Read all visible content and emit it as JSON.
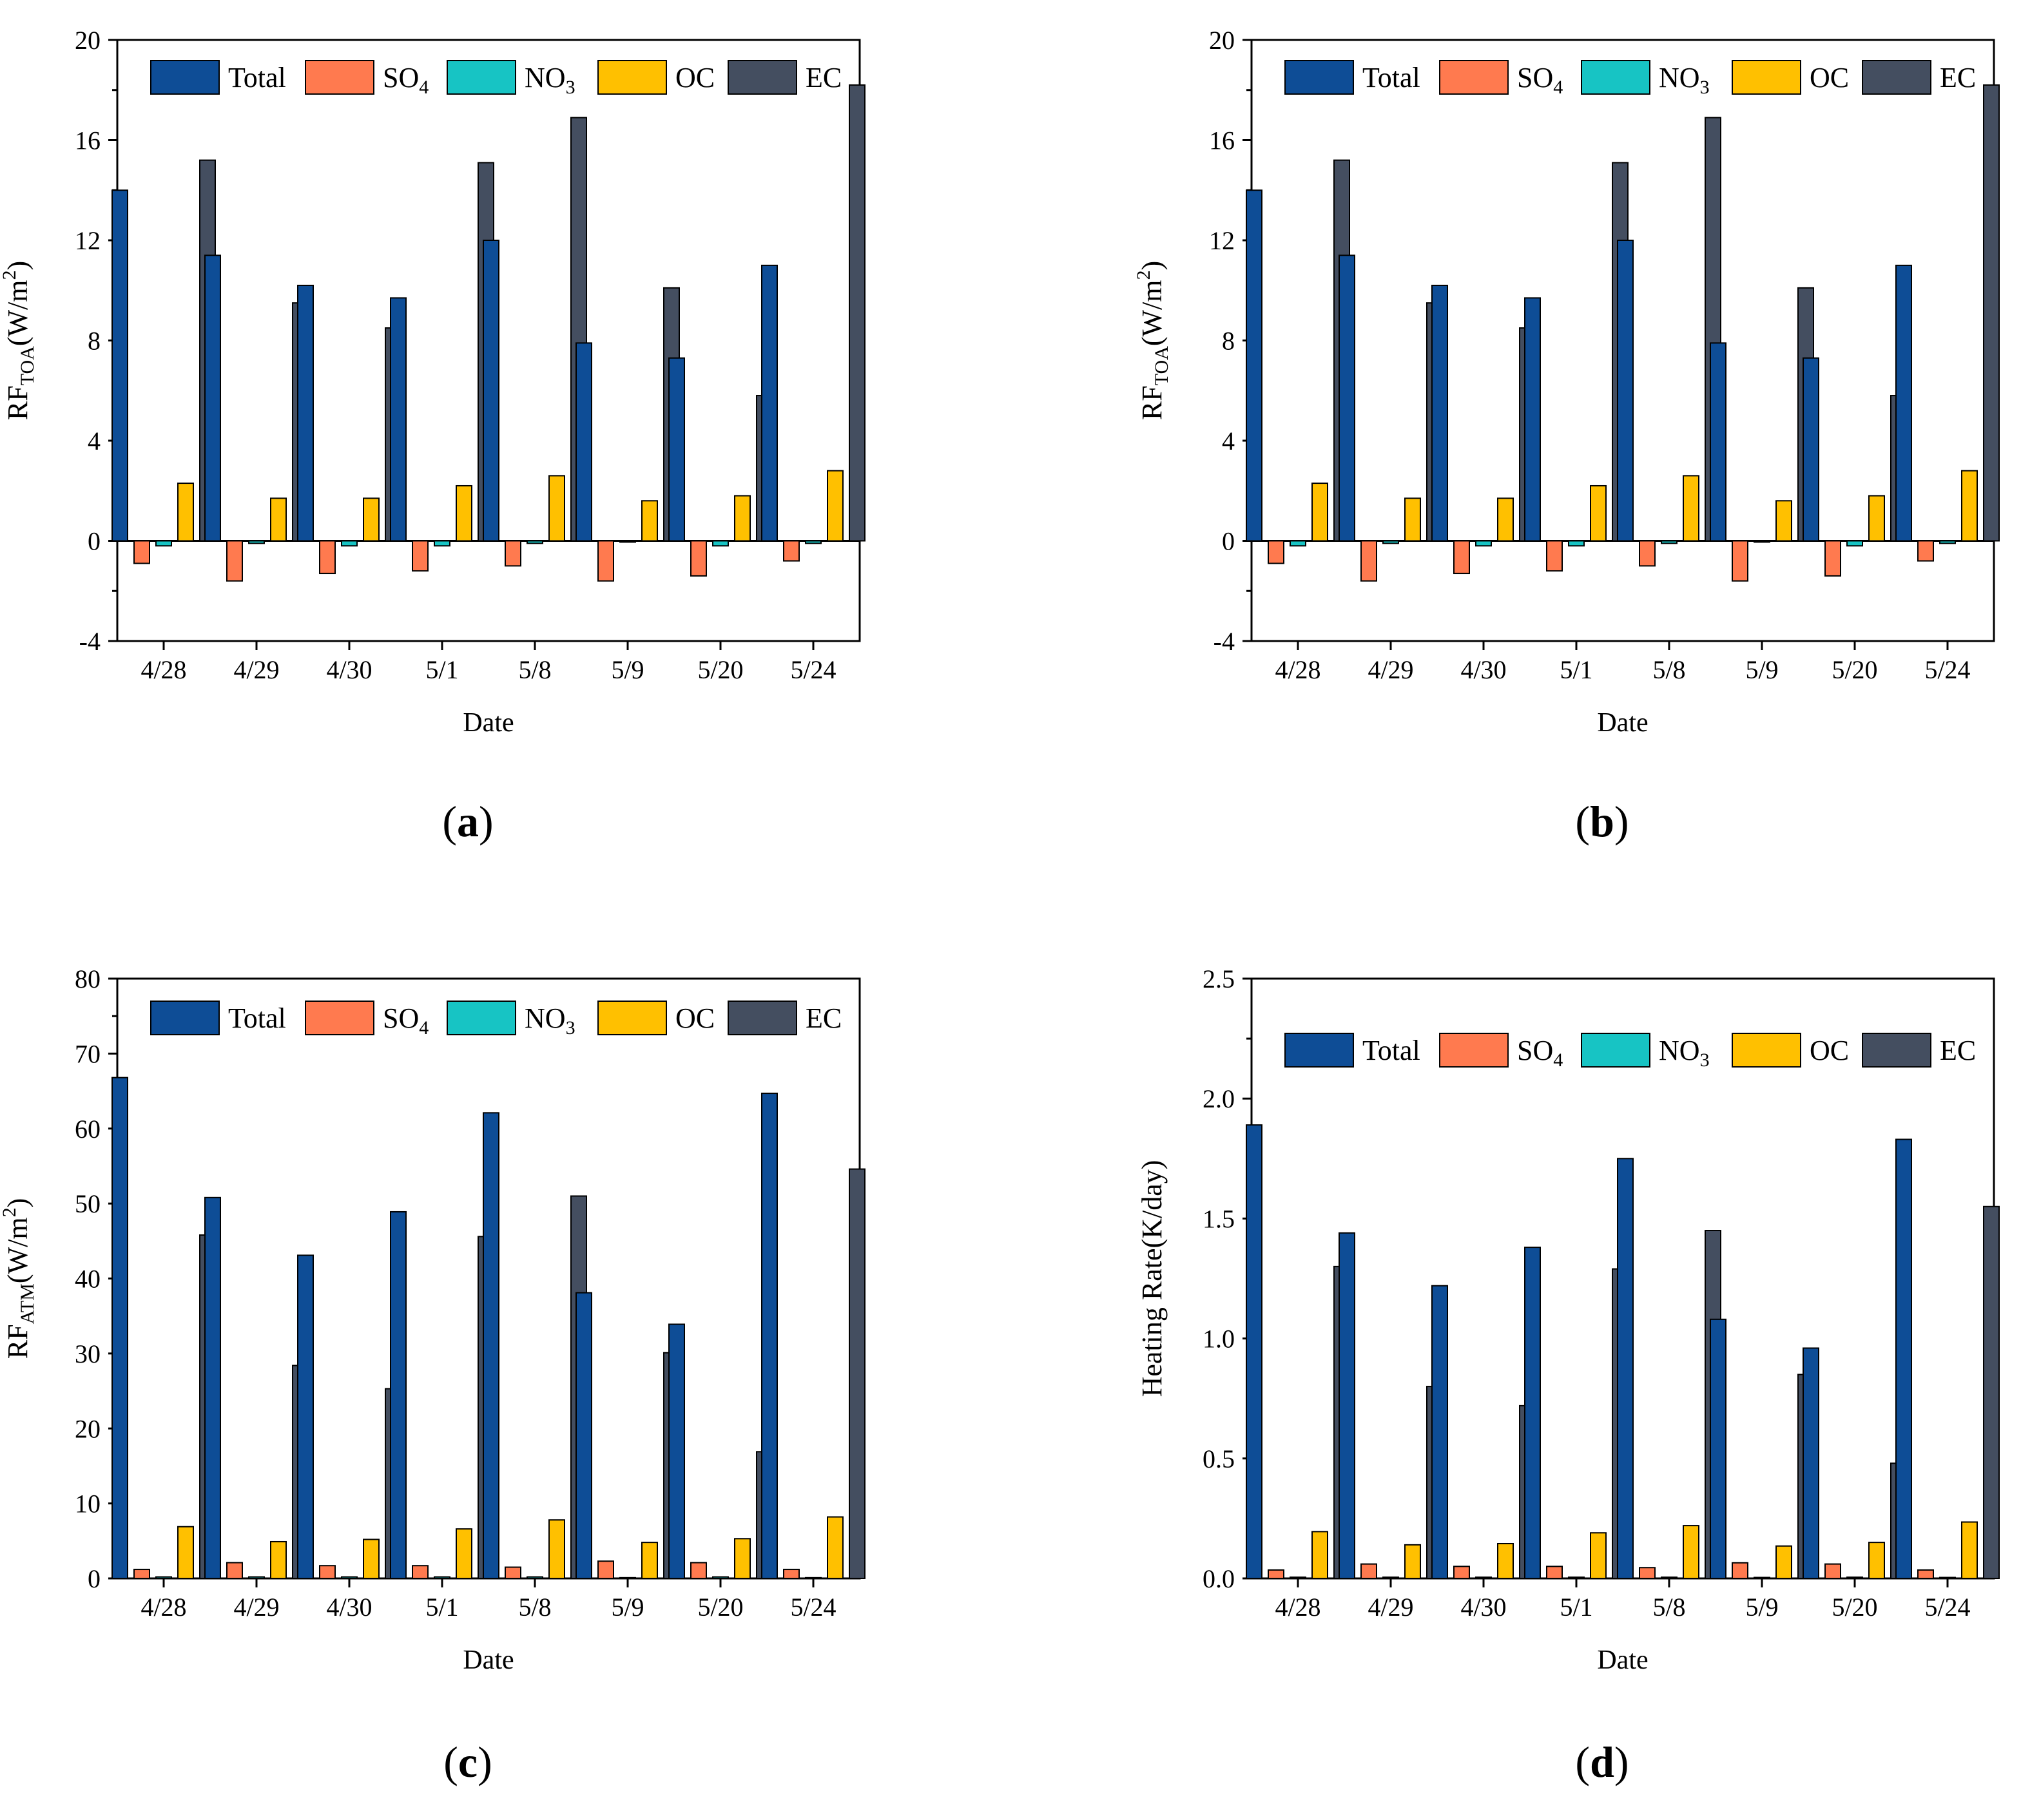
{
  "colors": {
    "Total": "#0e4d96",
    "SO4": "#ff7a4f",
    "NO3": "#17c4c4",
    "OC": "#ffc000",
    "EC": "#444e60"
  },
  "chart_data": [
    {
      "panel": "(a)",
      "type": "bar",
      "xlabel": "Date",
      "ylabel_main": "RF",
      "ylabel_sub": "TOA",
      "ylabel_unit_pre": "(W/m",
      "ylabel_unit_sup": "2",
      "ylabel_unit_post": ")",
      "ylim": [
        -4,
        20
      ],
      "yticks": [
        -4,
        0,
        4,
        8,
        12,
        16,
        20
      ],
      "ytick_labels": [
        "-4",
        "0",
        "4",
        "8",
        "12",
        "16",
        "20"
      ],
      "legend_position": "top",
      "categories": [
        "4/28",
        "4/29",
        "4/30",
        "5/1",
        "5/8",
        "5/9",
        "5/20",
        "5/24"
      ],
      "series": [
        {
          "key": "Total",
          "name": "Total",
          "sub": "",
          "values": [
            14.0,
            11.4,
            10.2,
            9.7,
            12.0,
            7.9,
            7.3,
            11.0
          ]
        },
        {
          "key": "SO4",
          "name": "SO",
          "sub": "4",
          "values": [
            -0.9,
            -1.6,
            -1.3,
            -1.2,
            -1.0,
            -1.6,
            -1.4,
            -0.8
          ]
        },
        {
          "key": "NO3",
          "name": "NO",
          "sub": "3",
          "values": [
            -0.2,
            -0.1,
            -0.2,
            -0.2,
            -0.1,
            -0.05,
            -0.2,
            -0.1
          ]
        },
        {
          "key": "OC",
          "name": "OC",
          "sub": "",
          "values": [
            2.3,
            1.7,
            1.7,
            2.2,
            2.6,
            1.6,
            1.8,
            2.8
          ]
        },
        {
          "key": "EC",
          "name": "EC",
          "sub": "",
          "values": [
            15.2,
            9.5,
            8.5,
            15.1,
            16.9,
            10.1,
            5.8,
            18.2
          ]
        }
      ]
    },
    {
      "panel": "(b)",
      "type": "bar",
      "xlabel": "Date",
      "ylabel_main": "RF",
      "ylabel_sub": "TOA",
      "ylabel_unit_pre": "(W/m",
      "ylabel_unit_sup": "2",
      "ylabel_unit_post": ")",
      "ylim": [
        -4,
        20
      ],
      "yticks": [
        -4,
        0,
        4,
        8,
        12,
        16,
        20
      ],
      "ytick_labels": [
        "-4",
        "0",
        "4",
        "8",
        "12",
        "16",
        "20"
      ],
      "legend_position": "top",
      "categories": [
        "4/28",
        "4/29",
        "4/30",
        "5/1",
        "5/8",
        "5/9",
        "5/20",
        "5/24"
      ],
      "series": [
        {
          "key": "Total",
          "name": "Total",
          "sub": "",
          "values": [
            14.0,
            11.4,
            10.2,
            9.7,
            12.0,
            7.9,
            7.3,
            11.0
          ]
        },
        {
          "key": "SO4",
          "name": "SO",
          "sub": "4",
          "values": [
            -0.9,
            -1.6,
            -1.3,
            -1.2,
            -1.0,
            -1.6,
            -1.4,
            -0.8
          ]
        },
        {
          "key": "NO3",
          "name": "NO",
          "sub": "3",
          "values": [
            -0.2,
            -0.1,
            -0.2,
            -0.2,
            -0.1,
            -0.05,
            -0.2,
            -0.1
          ]
        },
        {
          "key": "OC",
          "name": "OC",
          "sub": "",
          "values": [
            2.3,
            1.7,
            1.7,
            2.2,
            2.6,
            1.6,
            1.8,
            2.8
          ]
        },
        {
          "key": "EC",
          "name": "EC",
          "sub": "",
          "values": [
            15.2,
            9.5,
            8.5,
            15.1,
            16.9,
            10.1,
            5.8,
            18.2
          ]
        }
      ]
    },
    {
      "panel": "(c)",
      "type": "bar",
      "xlabel": "Date",
      "ylabel_main": "RF",
      "ylabel_sub": "ATM",
      "ylabel_unit_pre": "(W/m",
      "ylabel_unit_sup": "2",
      "ylabel_unit_post": ")",
      "ylim": [
        0,
        80
      ],
      "yticks": [
        0,
        10,
        20,
        30,
        40,
        50,
        60,
        70,
        80
      ],
      "ytick_labels": [
        "0",
        "10",
        "20",
        "30",
        "40",
        "50",
        "60",
        "70",
        "80"
      ],
      "legend_position": "top",
      "categories": [
        "4/28",
        "4/29",
        "4/30",
        "5/1",
        "5/8",
        "5/9",
        "5/20",
        "5/24"
      ],
      "series": [
        {
          "key": "Total",
          "name": "Total",
          "sub": "",
          "values": [
            66.8,
            50.8,
            43.1,
            48.9,
            62.1,
            38.1,
            33.9,
            64.7
          ]
        },
        {
          "key": "SO4",
          "name": "SO",
          "sub": "4",
          "values": [
            1.2,
            2.1,
            1.7,
            1.7,
            1.5,
            2.3,
            2.1,
            1.2
          ]
        },
        {
          "key": "NO3",
          "name": "NO",
          "sub": "3",
          "values": [
            0.2,
            0.2,
            0.2,
            0.2,
            0.2,
            0.1,
            0.2,
            0.1
          ]
        },
        {
          "key": "OC",
          "name": "OC",
          "sub": "",
          "values": [
            6.9,
            4.9,
            5.2,
            6.6,
            7.8,
            4.8,
            5.3,
            8.2
          ]
        },
        {
          "key": "EC",
          "name": "EC",
          "sub": "",
          "values": [
            45.8,
            28.4,
            25.3,
            45.6,
            51.0,
            30.1,
            16.9,
            54.6
          ]
        }
      ]
    },
    {
      "panel": "(d)",
      "type": "bar",
      "xlabel": "Date",
      "ylabel_main": "Heating Rate(K/day)",
      "ylabel_sub": "",
      "ylabel_unit_pre": "",
      "ylabel_unit_sup": "",
      "ylabel_unit_post": "",
      "ylim": [
        0,
        2.5
      ],
      "yticks": [
        0,
        0.5,
        1.0,
        1.5,
        2.0,
        2.5
      ],
      "ytick_labels": [
        "0.0",
        "0.5",
        "1.0",
        "1.5",
        "2.0",
        "2.5"
      ],
      "legend_position": "upper",
      "categories": [
        "4/28",
        "4/29",
        "4/30",
        "5/1",
        "5/8",
        "5/9",
        "5/20",
        "5/24"
      ],
      "series": [
        {
          "key": "Total",
          "name": "Total",
          "sub": "",
          "values": [
            1.89,
            1.44,
            1.22,
            1.38,
            1.75,
            1.08,
            0.96,
            1.83
          ]
        },
        {
          "key": "SO4",
          "name": "SO",
          "sub": "4",
          "values": [
            0.035,
            0.06,
            0.05,
            0.05,
            0.045,
            0.065,
            0.06,
            0.035
          ]
        },
        {
          "key": "NO3",
          "name": "NO",
          "sub": "3",
          "values": [
            0.005,
            0.005,
            0.005,
            0.005,
            0.005,
            0.004,
            0.005,
            0.004
          ]
        },
        {
          "key": "OC",
          "name": "OC",
          "sub": "",
          "values": [
            0.195,
            0.14,
            0.145,
            0.19,
            0.22,
            0.135,
            0.15,
            0.235
          ]
        },
        {
          "key": "EC",
          "name": "EC",
          "sub": "",
          "values": [
            1.3,
            0.8,
            0.72,
            1.29,
            1.45,
            0.85,
            0.48,
            1.55
          ]
        }
      ]
    }
  ]
}
